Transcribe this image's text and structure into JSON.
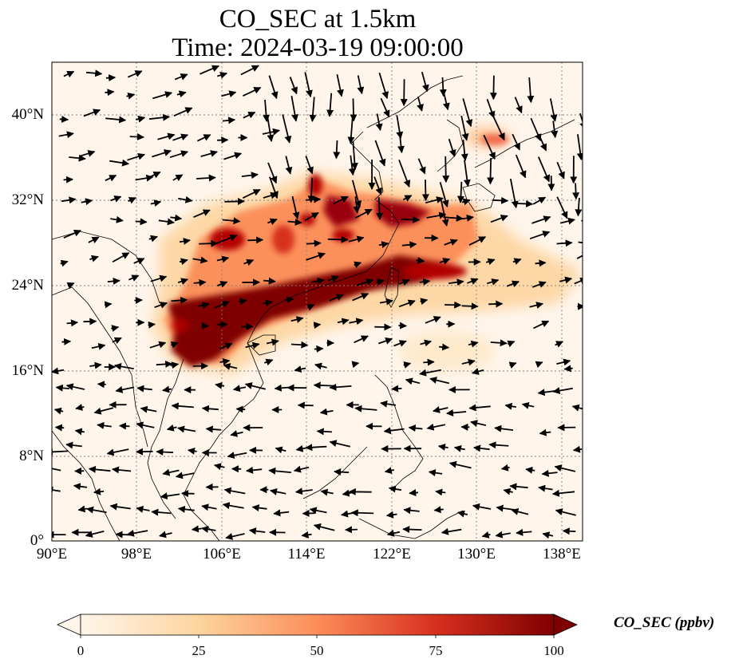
{
  "title_line1": "CO_SEC at 1.5km",
  "title_line2": "Time: 2024-03-19 09:00:00",
  "lat_ticks": [
    "40°N",
    "32°N",
    "24°N",
    "16°N",
    "8°N",
    "0°"
  ],
  "lon_ticks": [
    "90°E",
    "98°E",
    "106°E",
    "114°E",
    "122°E",
    "130°E",
    "138°E"
  ],
  "colorbar": {
    "label": "CO_SEC (ppbv)",
    "ticks": [
      "0",
      "25",
      "50",
      "75",
      "100"
    ],
    "colors": [
      "#fff5eb",
      "#fdd49e",
      "#fc8d59",
      "#d7301f",
      "#7f0000"
    ]
  },
  "map": {
    "lon_range": [
      90,
      140
    ],
    "lat_range": [
      0,
      45
    ],
    "gridlines": true
  }
}
